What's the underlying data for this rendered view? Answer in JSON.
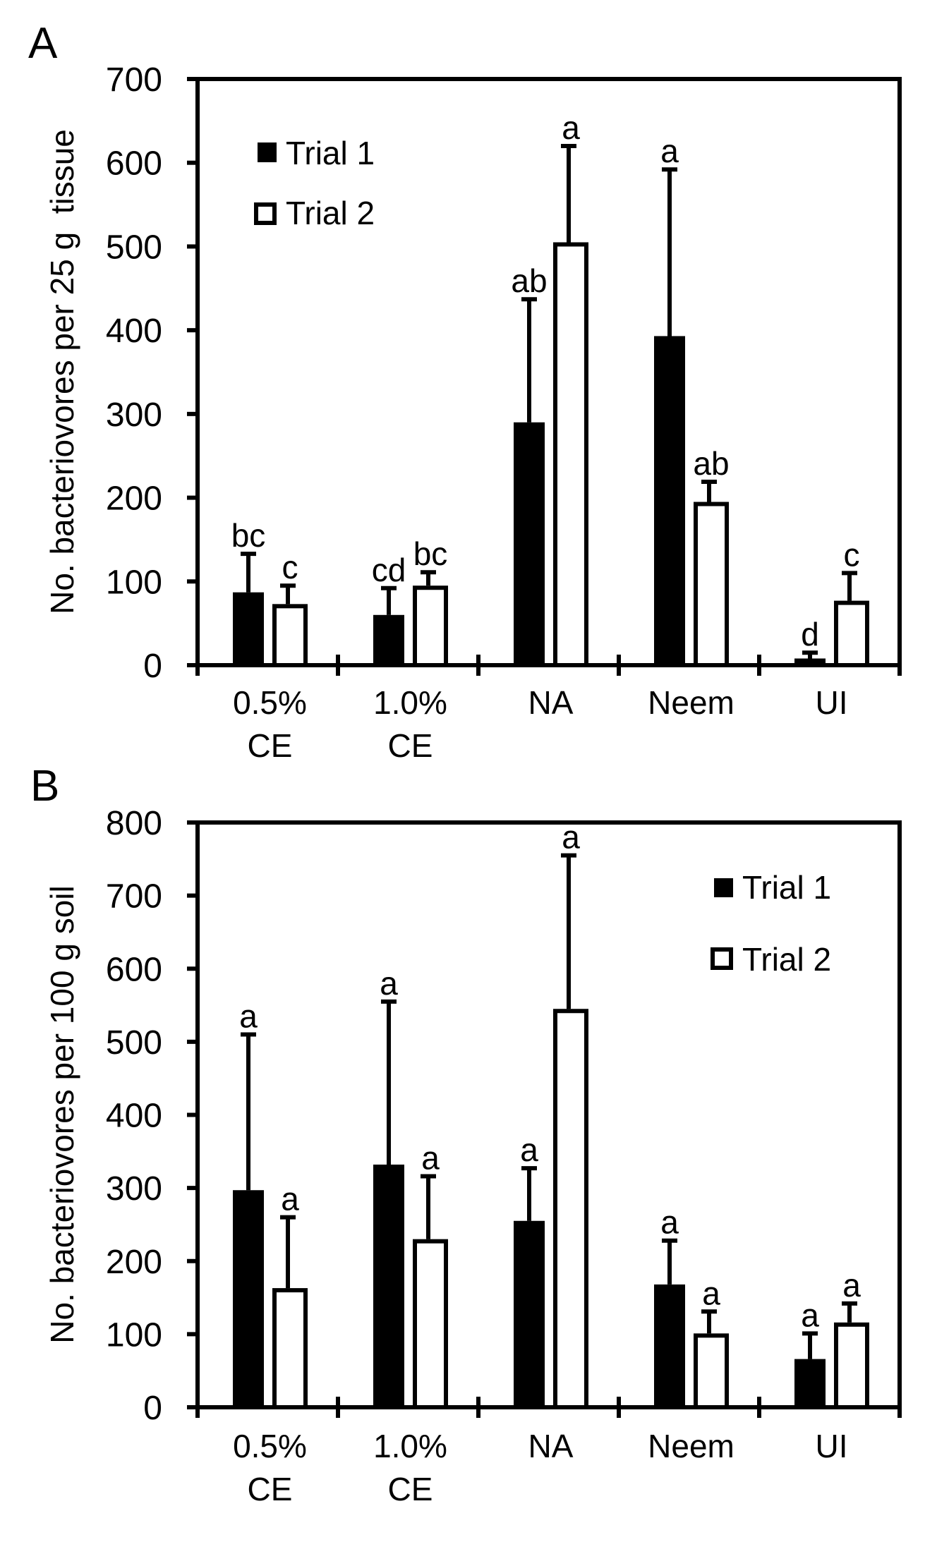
{
  "colors": {
    "ink": "#000000",
    "background": "#ffffff",
    "trial1_fill": "#000000",
    "trial2_fill": "#ffffff"
  },
  "chart_data": [
    {
      "panel_label": "A",
      "type": "bar",
      "title": "",
      "xlabel": "",
      "ylabel": "No. bacteriovores per 25 g  tissue",
      "ylim": [
        0,
        700
      ],
      "yticks": [
        0,
        100,
        200,
        300,
        400,
        500,
        600,
        700
      ],
      "grid": false,
      "legend_position": "top-left",
      "categories": [
        [
          "0.5%",
          "CE"
        ],
        [
          "1.0%",
          "CE"
        ],
        [
          "NA"
        ],
        [
          "Neem"
        ],
        [
          "UI"
        ]
      ],
      "series": [
        {
          "name": "Trial 1",
          "style": "filled",
          "values": [
            87,
            60,
            290,
            393,
            8
          ],
          "error_upper": [
            133,
            92,
            437,
            592,
            15
          ],
          "letters": [
            "bc",
            "cd",
            "ab",
            "a",
            "d"
          ]
        },
        {
          "name": "Trial 2",
          "style": "open",
          "values": [
            73,
            95,
            505,
            195,
            77
          ],
          "error_upper": [
            95,
            111,
            620,
            219,
            110
          ],
          "letters": [
            "c",
            "bc",
            "a",
            "ab",
            "c"
          ]
        }
      ]
    },
    {
      "panel_label": "B",
      "type": "bar",
      "title": "",
      "xlabel": "",
      "ylabel": "No. bacteriovores per 100 g soil",
      "ylim": [
        0,
        800
      ],
      "yticks": [
        0,
        100,
        200,
        300,
        400,
        500,
        600,
        700,
        800
      ],
      "grid": false,
      "legend_position": "top-right",
      "categories": [
        [
          "0.5%",
          "CE"
        ],
        [
          "1.0%",
          "CE"
        ],
        [
          "NA"
        ],
        [
          "Neem"
        ],
        [
          "UI"
        ]
      ],
      "series": [
        {
          "name": "Trial 1",
          "style": "filled",
          "values": [
            297,
            332,
            255,
            168,
            66
          ],
          "error_upper": [
            510,
            555,
            327,
            228,
            101
          ],
          "letters": [
            "a",
            "a",
            "a",
            "a",
            "a"
          ]
        },
        {
          "name": "Trial 2",
          "style": "open",
          "values": [
            163,
            230,
            545,
            101,
            116
          ],
          "error_upper": [
            260,
            316,
            755,
            131,
            142
          ],
          "letters": [
            "a",
            "a",
            "a",
            "a",
            "a"
          ]
        }
      ]
    }
  ]
}
